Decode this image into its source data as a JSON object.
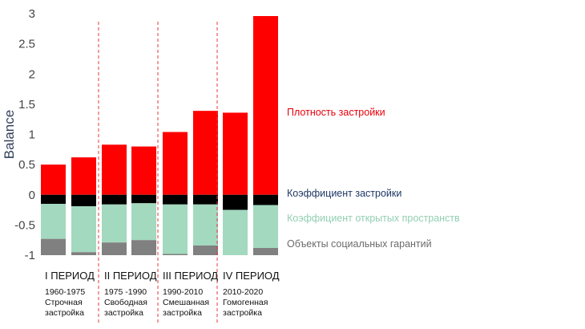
{
  "chart_data": {
    "type": "bar",
    "stacked": true,
    "ylabel": "Balance",
    "ylim": [
      -1,
      3
    ],
    "yticks": [
      3,
      2.5,
      2,
      1.5,
      1,
      0.5,
      0,
      -0.5,
      -1
    ],
    "ytick_labels": [
      "3",
      "2.5",
      "2",
      "1.5",
      "1",
      "0.5",
      "0",
      "-0.5",
      "-1"
    ],
    "grid": false,
    "bars": [
      {
        "density": 0.5,
        "coverage": -0.15,
        "open_space": -0.58,
        "social": -0.27
      },
      {
        "density": 0.62,
        "coverage": -0.19,
        "open_space": -0.76,
        "social": -0.05
      },
      {
        "density": 0.83,
        "coverage": -0.16,
        "open_space": -0.63,
        "social": -0.21
      },
      {
        "density": 0.8,
        "coverage": -0.14,
        "open_space": -0.61,
        "social": -0.25
      },
      {
        "density": 1.04,
        "coverage": -0.16,
        "open_space": -0.82,
        "social": -0.02
      },
      {
        "density": 1.39,
        "coverage": -0.16,
        "open_space": -0.68,
        "social": -0.16
      },
      {
        "density": 1.36,
        "coverage": -0.25,
        "open_space": -0.75,
        "social": 0.0
      },
      {
        "density": 2.96,
        "coverage": -0.17,
        "open_space": -0.71,
        "social": -0.12
      }
    ],
    "series": [
      {
        "key": "density",
        "name": "Плотность застройки",
        "color": "#ff0000",
        "label_color": "#e8000b"
      },
      {
        "key": "coverage",
        "name": "Коэффициент застройки",
        "color": "#000000",
        "label_color": "#1f3864"
      },
      {
        "key": "open_space",
        "name": "Коэффициент открытых пространств",
        "color": "#a3d9bf",
        "label_color": "#93cfb3"
      },
      {
        "key": "social",
        "name": "Объекты социальных гарантий",
        "color": "#808080",
        "label_color": "#6b6b6b"
      }
    ],
    "periods": [
      {
        "title": "I ПЕРИОД",
        "years": "1960-1975",
        "desc_line1": "Строчная",
        "desc_line2": "застройка"
      },
      {
        "title": "II ПЕРИОД",
        "years": "1975 -1990",
        "desc_line1": "Свободная",
        "desc_line2": "застройка"
      },
      {
        "title": "III ПЕРИОД",
        "years": "1990-2010",
        "desc_line1": "Смешанная",
        "desc_line2": "застройка"
      },
      {
        "title": "IV ПЕРИОД",
        "years": "2010-2020",
        "desc_line1": "Гомогенная",
        "desc_line2": "застройка"
      }
    ]
  }
}
